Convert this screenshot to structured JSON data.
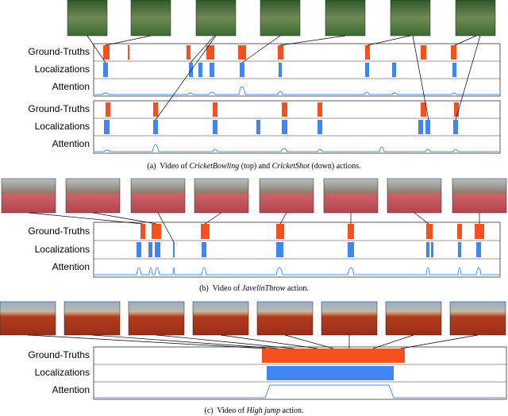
{
  "panels": [
    {
      "groups": [
        {
          "rows": [
            "Ground-Truths",
            "Localizations",
            "Attention"
          ]
        },
        {
          "rows": [
            "Ground-Truths",
            "Localizations",
            "Attention"
          ]
        }
      ],
      "caption": [
        "(a)  Video of ",
        "CricketBowling",
        " (top) and ",
        "CricketShot",
        " (down) actions."
      ]
    },
    {
      "groups": [
        {
          "rows": [
            "Ground-Truths",
            "Localizations",
            "Attention"
          ]
        }
      ],
      "caption": [
        "(b)  Video of ",
        "JavelinThrow",
        " action."
      ]
    },
    {
      "groups": [
        {
          "rows": [
            "Ground-Truths",
            "Localizations",
            "Attention"
          ]
        }
      ],
      "caption": [
        "(c)  Video of ",
        "High jump",
        " action."
      ]
    }
  ]
}
